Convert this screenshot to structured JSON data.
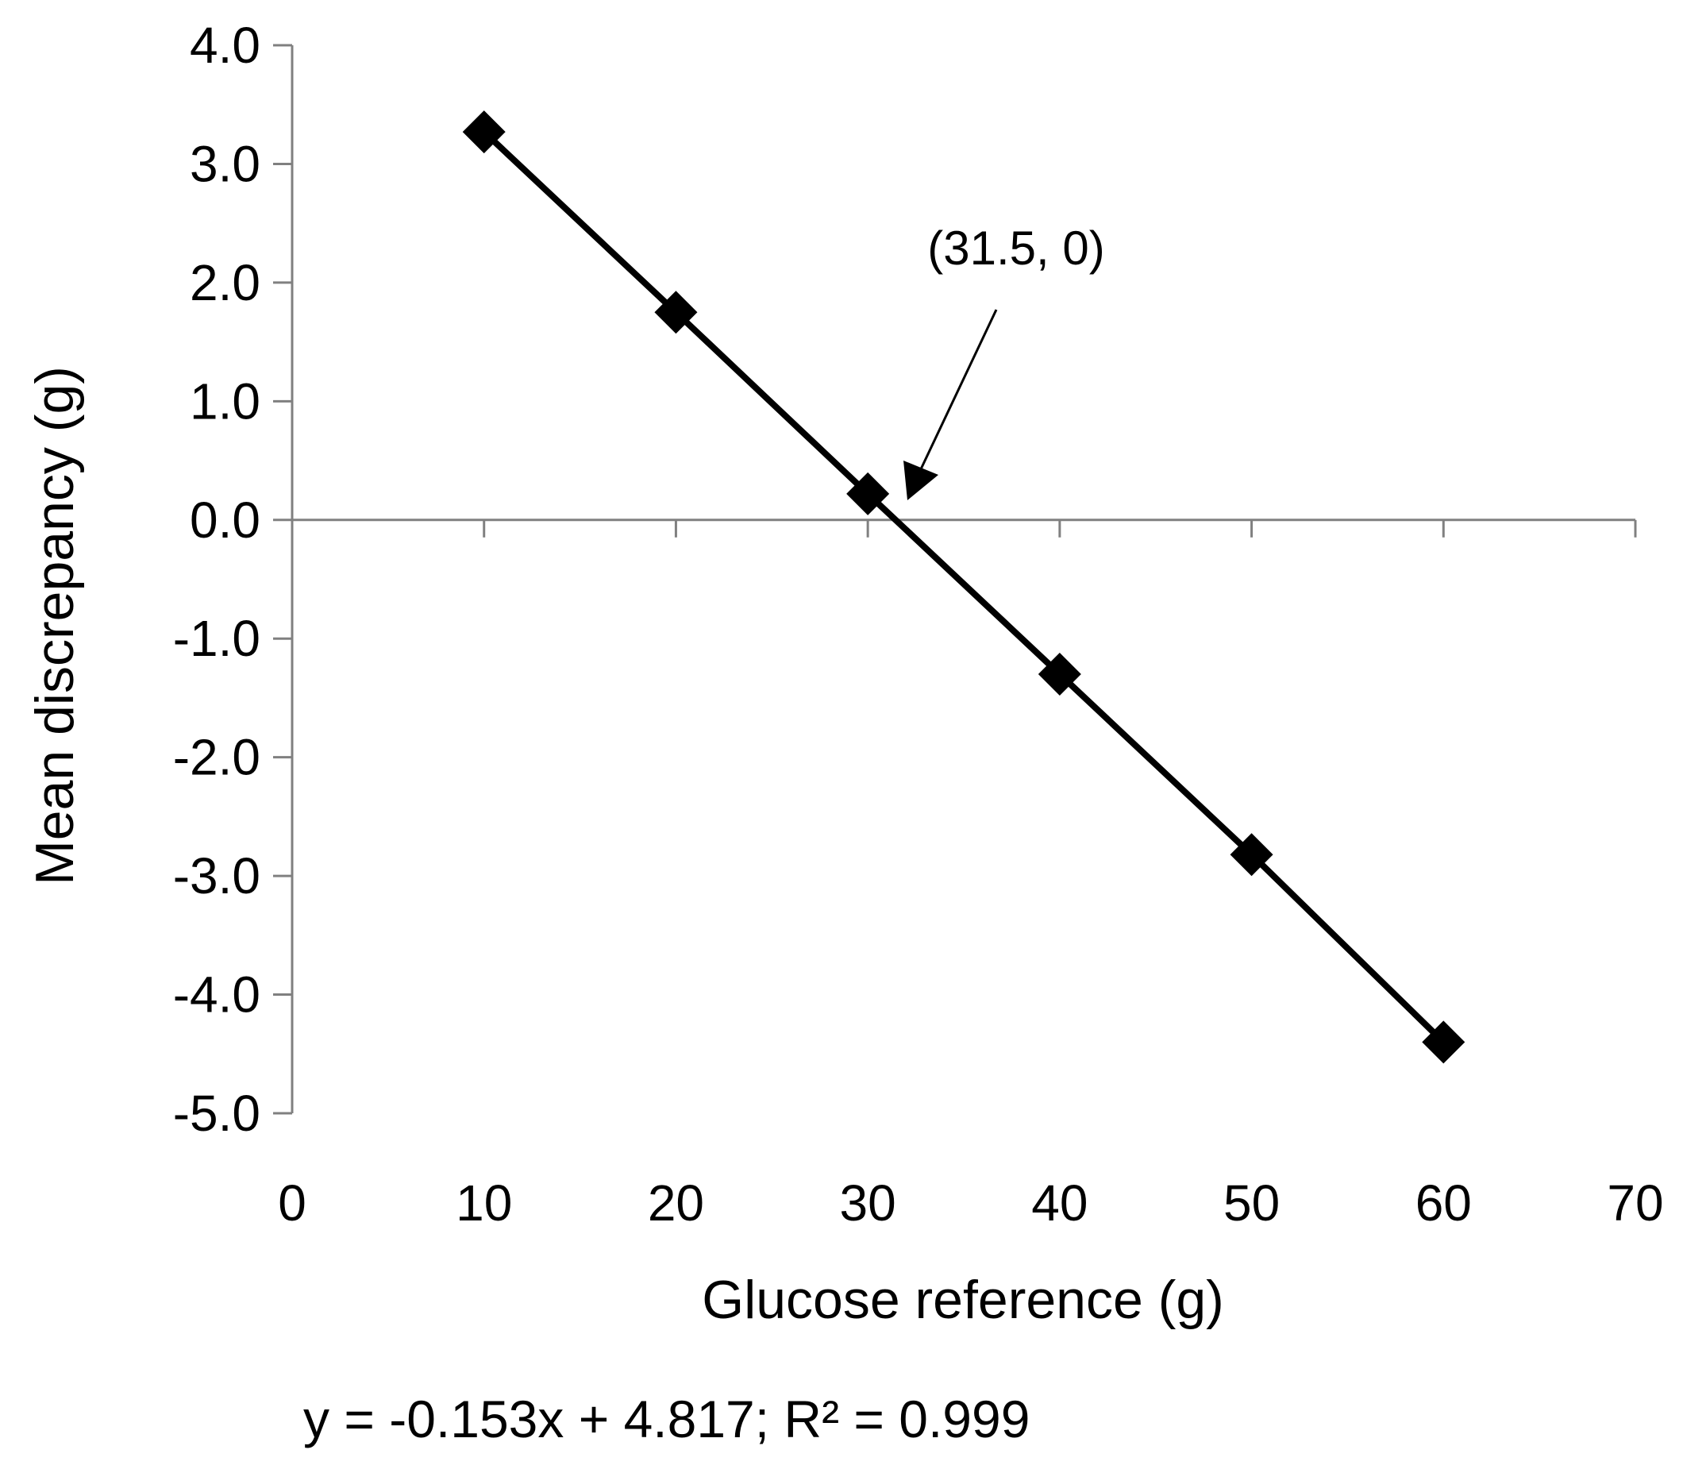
{
  "chart_data": {
    "type": "scatter",
    "title": "",
    "xlabel": "Glucose reference (g)",
    "ylabel": "Mean discrepancy (g)",
    "xlim": [
      0,
      70
    ],
    "ylim": [
      -5.0,
      4.0
    ],
    "x_ticks": [
      "0",
      "10",
      "20",
      "30",
      "40",
      "50",
      "60",
      "70"
    ],
    "y_ticks": [
      "4.0",
      "3.0",
      "2.0",
      "1.0",
      "0.0",
      "-1.0",
      "-2.0",
      "-3.0",
      "-4.0",
      "-5.0"
    ],
    "grid": false,
    "legend": "none",
    "marker": "diamond",
    "series": [
      {
        "x": [
          10,
          20,
          30,
          40,
          50,
          60
        ],
        "y": [
          3.27,
          1.75,
          0.22,
          -1.3,
          -2.82,
          -4.4
        ],
        "color": "#000000"
      }
    ],
    "trendline": {
      "slope": -0.153,
      "intercept": 4.817,
      "x_range": [
        10,
        60
      ]
    },
    "annotation": {
      "text": "(31.5, 0)",
      "x": 31.5,
      "y": 0
    },
    "equation": "y = -0.153x  + 4.817; R² = 0.999"
  }
}
